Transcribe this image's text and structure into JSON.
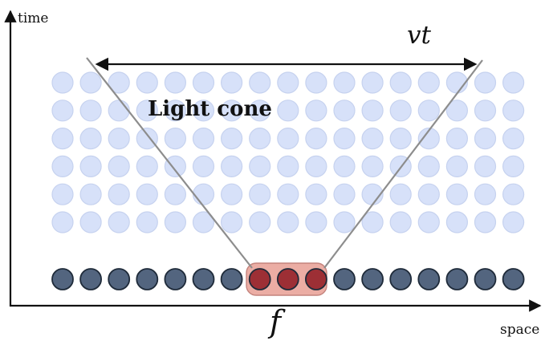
{
  "axes": {
    "y_label": "time",
    "x_label": "space"
  },
  "labels": {
    "light_cone": "Light cone",
    "distance": "vt",
    "operator": "f"
  },
  "grid": {
    "columns": 17,
    "light_rows": 6,
    "highlight_start": 7,
    "highlight_count": 3
  },
  "colors": {
    "light_fill": "#d7e1f9",
    "light_stroke": "#c6d2ef",
    "dark_fill": "#53657f",
    "dark_stroke": "#1f2b3a",
    "red_fill": "#9d2f35",
    "highlight_box": "#e79b90",
    "axis": "#111111",
    "cone_line": "#8d8d8d"
  }
}
